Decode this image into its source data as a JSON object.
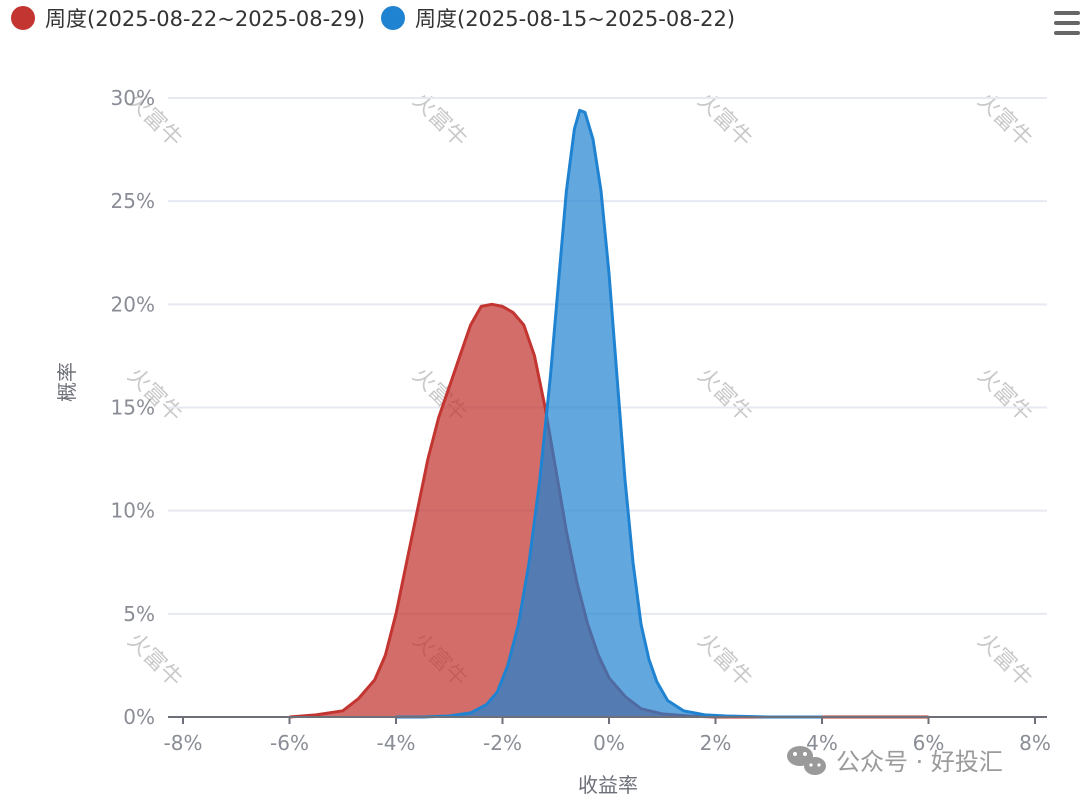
{
  "chart_data": {
    "type": "area",
    "xlabel": "收益率",
    "ylabel": "概率",
    "x_ticks": [
      "-8%",
      "-6%",
      "-4%",
      "-2%",
      "0%",
      "2%",
      "4%",
      "6%",
      "8%"
    ],
    "y_ticks": [
      "0%",
      "5%",
      "10%",
      "15%",
      "20%",
      "25%",
      "30%"
    ],
    "xlim": [
      -8,
      8
    ],
    "ylim": [
      0,
      30
    ],
    "legend_position": "top-left",
    "grid": true,
    "series": [
      {
        "name": "周度(2025-08-22~2025-08-29)",
        "color": "#c23531",
        "points": [
          [
            -6.0,
            0.0
          ],
          [
            -5.5,
            0.1
          ],
          [
            -5.0,
            0.3
          ],
          [
            -4.7,
            0.9
          ],
          [
            -4.4,
            1.8
          ],
          [
            -4.2,
            3.0
          ],
          [
            -4.0,
            5.0
          ],
          [
            -3.8,
            7.5
          ],
          [
            -3.6,
            10.0
          ],
          [
            -3.4,
            12.5
          ],
          [
            -3.2,
            14.5
          ],
          [
            -3.0,
            16.0
          ],
          [
            -2.8,
            17.5
          ],
          [
            -2.6,
            19.0
          ],
          [
            -2.4,
            19.9
          ],
          [
            -2.2,
            20.0
          ],
          [
            -2.0,
            19.9
          ],
          [
            -1.8,
            19.6
          ],
          [
            -1.6,
            19.0
          ],
          [
            -1.4,
            17.5
          ],
          [
            -1.2,
            15.0
          ],
          [
            -1.0,
            12.0
          ],
          [
            -0.8,
            9.0
          ],
          [
            -0.6,
            6.5
          ],
          [
            -0.4,
            4.5
          ],
          [
            -0.2,
            3.0
          ],
          [
            0.0,
            1.9
          ],
          [
            0.3,
            1.0
          ],
          [
            0.6,
            0.4
          ],
          [
            1.0,
            0.15
          ],
          [
            1.5,
            0.05
          ],
          [
            2.0,
            0.0
          ],
          [
            6.0,
            0.0
          ]
        ]
      },
      {
        "name": "周度(2025-08-15~2025-08-22)",
        "color": "#1f83d1",
        "points": [
          [
            -4.0,
            0.0
          ],
          [
            -3.5,
            0.0
          ],
          [
            -3.0,
            0.05
          ],
          [
            -2.6,
            0.2
          ],
          [
            -2.3,
            0.6
          ],
          [
            -2.1,
            1.2
          ],
          [
            -1.9,
            2.5
          ],
          [
            -1.7,
            4.5
          ],
          [
            -1.5,
            7.5
          ],
          [
            -1.3,
            11.5
          ],
          [
            -1.1,
            16.5
          ],
          [
            -0.95,
            21.0
          ],
          [
            -0.8,
            25.5
          ],
          [
            -0.65,
            28.5
          ],
          [
            -0.55,
            29.4
          ],
          [
            -0.45,
            29.3
          ],
          [
            -0.3,
            28.0
          ],
          [
            -0.15,
            25.5
          ],
          [
            0.0,
            21.5
          ],
          [
            0.15,
            16.5
          ],
          [
            0.3,
            11.5
          ],
          [
            0.45,
            7.5
          ],
          [
            0.6,
            4.5
          ],
          [
            0.75,
            2.8
          ],
          [
            0.9,
            1.7
          ],
          [
            1.1,
            0.8
          ],
          [
            1.4,
            0.3
          ],
          [
            1.8,
            0.1
          ],
          [
            2.2,
            0.05
          ],
          [
            3.0,
            0.0
          ],
          [
            4.0,
            0.0
          ]
        ]
      }
    ]
  },
  "watermark": {
    "text": "火富牛"
  },
  "wechat_mark": {
    "text": "公众号 · 好投汇"
  },
  "menu_icon": "hamburger-menu-icon"
}
